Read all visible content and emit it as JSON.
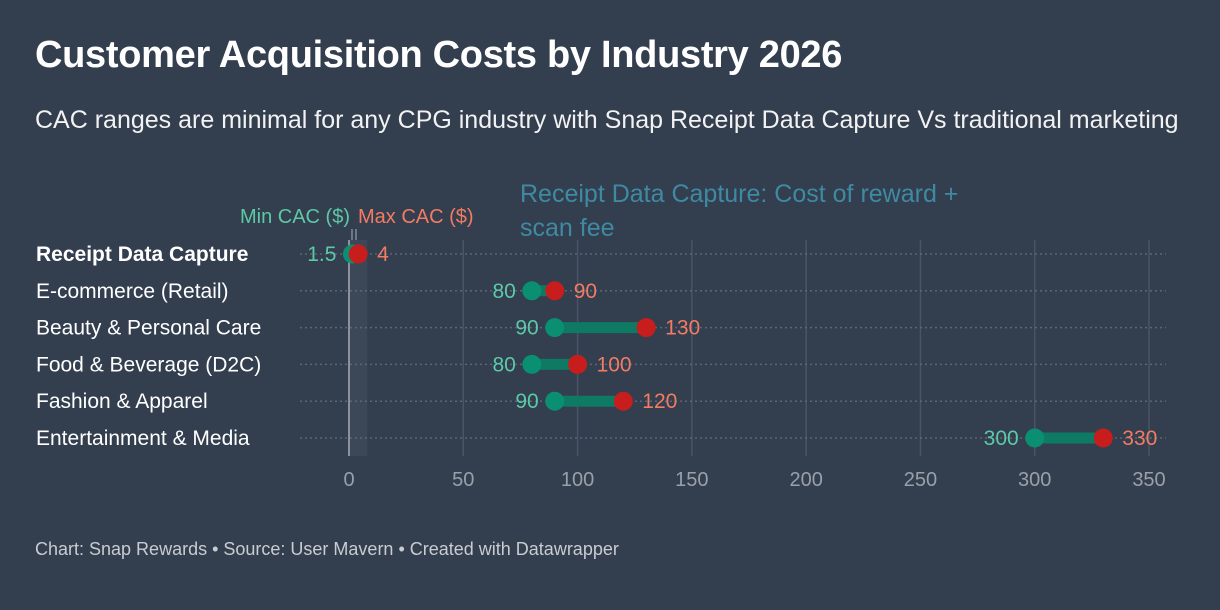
{
  "header": {
    "title": "Customer Acquisition Costs by Industry 2026",
    "subtitle": "CAC ranges are minimal for any CPG industry with Snap Receipt Data Capture Vs traditional marketing"
  },
  "footer": {
    "text": "Chart: Snap Rewards • Source: User Mavern • Created with Datawrapper"
  },
  "colors": {
    "background": "#333e4f",
    "min_dot": "#0a8f72",
    "max_dot": "#c71e1d",
    "range_bar": "#0e7a64",
    "min_label": "#5cc9a7",
    "max_label": "#f27b62",
    "annotation": "#3f8aa3"
  },
  "chart_data": {
    "type": "range-dot",
    "title": "Customer Acquisition Costs by Industry 2026",
    "subtitle": "CAC ranges are minimal for any CPG industry with Snap Receipt Data Capture Vs traditional marketing",
    "xlabel": "",
    "ylabel": "",
    "xlim": [
      0,
      350
    ],
    "xticks": [
      0,
      50,
      100,
      150,
      200,
      250,
      300,
      350
    ],
    "grid": true,
    "legend": {
      "placement": "top",
      "entries": [
        {
          "name": "Min CAC ($)",
          "color": "#5cc9a7"
        },
        {
          "name": "Max CAC ($)",
          "color": "#f27b62"
        }
      ]
    },
    "categories": [
      "Receipt Data Capture",
      "E-commerce (Retail)",
      "Beauty & Personal Care",
      "Food & Beverage (D2C)",
      "Fashion & Apparel",
      "Entertainment & Media"
    ],
    "highlighted_category": "Receipt Data Capture",
    "series": [
      {
        "name": "Min CAC ($)",
        "values": [
          1.5,
          80,
          90,
          80,
          90,
          300
        ]
      },
      {
        "name": "Max CAC ($)",
        "values": [
          4,
          90,
          130,
          100,
          120,
          330
        ]
      }
    ],
    "highlight_band": {
      "from": 0,
      "to": 8
    },
    "annotations": [
      {
        "text": "Receipt Data Capture: Cost of reward + scan fee"
      }
    ]
  }
}
